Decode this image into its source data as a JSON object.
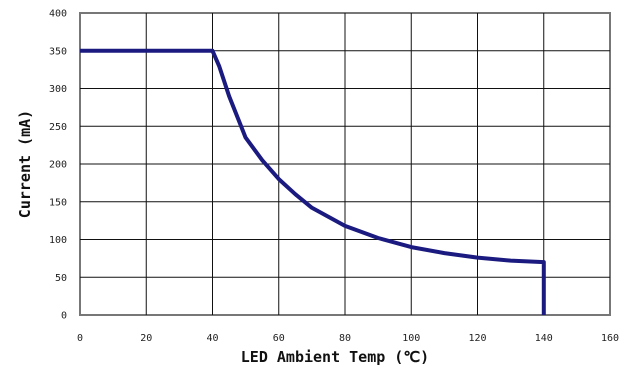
{
  "chart_data": {
    "type": "line",
    "title": "",
    "xlabel": "LED Ambient Temp (℃)",
    "ylabel": "Current (mA)",
    "xlim": [
      0,
      160
    ],
    "ylim": [
      0,
      400
    ],
    "xticks": [
      0,
      20,
      40,
      60,
      80,
      100,
      120,
      140,
      160
    ],
    "yticks": [
      0,
      50,
      100,
      150,
      200,
      250,
      300,
      350,
      400
    ],
    "grid": true,
    "legend": "none",
    "line_color": "#1a1a80",
    "series": [
      {
        "x": [
          0,
          40,
          42,
          45,
          50,
          55,
          60,
          65,
          70,
          80,
          90,
          100,
          110,
          120,
          130,
          140,
          140
        ],
        "y": [
          350,
          350,
          330,
          290,
          235,
          205,
          180,
          160,
          142,
          118,
          102,
          90,
          82,
          76,
          72,
          70,
          0
        ]
      }
    ]
  }
}
